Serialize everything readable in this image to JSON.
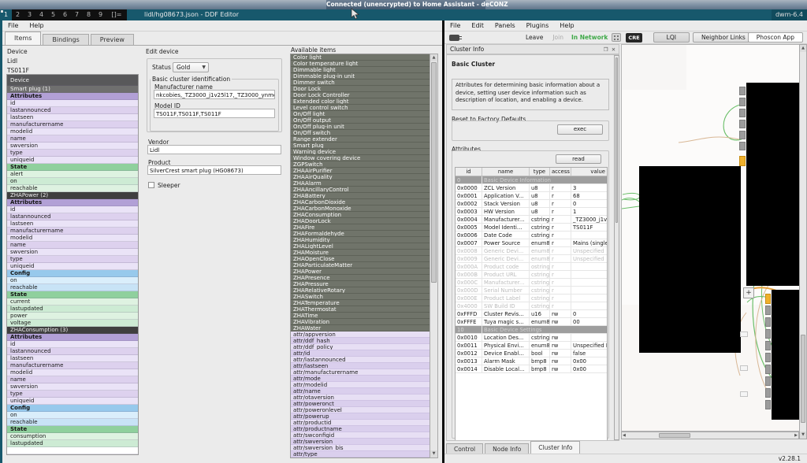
{
  "screen": {
    "top_title": "Connected (unencrypted) to Home Assistant - deCONZ",
    "dwm": {
      "tags": [
        {
          "kind": "tag active",
          "label": "1"
        },
        {
          "kind": "tag",
          "label": "2"
        },
        {
          "kind": "tag",
          "label": "3"
        },
        {
          "kind": "tag",
          "label": "4"
        },
        {
          "kind": "tag",
          "label": "5"
        },
        {
          "kind": "tag",
          "label": "6"
        },
        {
          "kind": "tag",
          "label": "7"
        },
        {
          "kind": "tag",
          "label": "8"
        },
        {
          "kind": "tag",
          "label": "9"
        }
      ],
      "layout": "[]=",
      "window_title": "lidl/hg08673.json - DDF Editor",
      "status": "dwm-6.4"
    },
    "colors": {
      "accent_teal": "#17586c",
      "in_network_green": "#3fa948",
      "marker_orange": "#f0b12c",
      "link_green": "#6abf69",
      "link_tan": "#d9b896"
    }
  },
  "ddf_editor": {
    "menu": [
      {
        "kind": "mi",
        "label": "File"
      },
      {
        "kind": "mi",
        "label": "Help"
      }
    ],
    "tabs": [
      {
        "kind": "tab active",
        "label": "Items"
      },
      {
        "kind": "tab",
        "label": "Bindings"
      },
      {
        "kind": "tab",
        "label": "Preview"
      }
    ],
    "device_label": "Device",
    "device_vendor": "Lidl",
    "device_model": "TS011F",
    "tree": [
      {
        "kind": "k-dev",
        "label": "Device"
      },
      {
        "kind": "k-mid",
        "label": "Smart plug (1)"
      },
      {
        "kind": "k-ph",
        "label": "Attributes"
      },
      {
        "kind": "k-p0",
        "label": "id"
      },
      {
        "kind": "k-p1",
        "label": "lastannounced"
      },
      {
        "kind": "k-p0",
        "label": "lastseen"
      },
      {
        "kind": "k-p1",
        "label": "manufacturername"
      },
      {
        "kind": "k-p0",
        "label": "modelid"
      },
      {
        "kind": "k-p1",
        "label": "name"
      },
      {
        "kind": "k-p0",
        "label": "swversion"
      },
      {
        "kind": "k-p1",
        "label": "type"
      },
      {
        "kind": "k-p0",
        "label": "uniqueid"
      },
      {
        "kind": "k-gh",
        "label": "State"
      },
      {
        "kind": "k-g0",
        "label": "alert"
      },
      {
        "kind": "k-g1",
        "label": "on"
      },
      {
        "kind": "k-g0",
        "label": "reachable"
      },
      {
        "kind": "k-zha",
        "label": "ZHAPower (2)"
      },
      {
        "kind": "k-ph",
        "label": "Attributes"
      },
      {
        "kind": "k-p0",
        "label": "id"
      },
      {
        "kind": "k-p1",
        "label": "lastannounced"
      },
      {
        "kind": "k-p0",
        "label": "lastseen"
      },
      {
        "kind": "k-p1",
        "label": "manufacturername"
      },
      {
        "kind": "k-p0",
        "label": "modelid"
      },
      {
        "kind": "k-p1",
        "label": "name"
      },
      {
        "kind": "k-p0",
        "label": "swversion"
      },
      {
        "kind": "k-p1",
        "label": "type"
      },
      {
        "kind": "k-p0",
        "label": "uniqueid"
      },
      {
        "kind": "k-bh",
        "label": "Config"
      },
      {
        "kind": "k-b0",
        "label": "on"
      },
      {
        "kind": "k-b1",
        "label": "reachable"
      },
      {
        "kind": "k-gh",
        "label": "State"
      },
      {
        "kind": "k-g0",
        "label": "current"
      },
      {
        "kind": "k-g1",
        "label": "lastupdated"
      },
      {
        "kind": "k-g0",
        "label": "power"
      },
      {
        "kind": "k-g1",
        "label": "voltage"
      },
      {
        "kind": "k-zha",
        "label": "ZHAConsumption (3)"
      },
      {
        "kind": "k-ph",
        "label": "Attributes"
      },
      {
        "kind": "k-p0",
        "label": "id"
      },
      {
        "kind": "k-p1",
        "label": "lastannounced"
      },
      {
        "kind": "k-p0",
        "label": "lastseen"
      },
      {
        "kind": "k-p1",
        "label": "manufacturername"
      },
      {
        "kind": "k-p0",
        "label": "modelid"
      },
      {
        "kind": "k-p1",
        "label": "name"
      },
      {
        "kind": "k-p0",
        "label": "swversion"
      },
      {
        "kind": "k-p1",
        "label": "type"
      },
      {
        "kind": "k-p0",
        "label": "uniqueid"
      },
      {
        "kind": "k-bh",
        "label": "Config"
      },
      {
        "kind": "k-b0",
        "label": "on"
      },
      {
        "kind": "k-b1",
        "label": "reachable"
      },
      {
        "kind": "k-gh",
        "label": "State"
      },
      {
        "kind": "k-g0",
        "label": "consumption"
      },
      {
        "kind": "k-g1",
        "label": "lastupdated"
      },
      {
        "kind": "k-empty",
        "label": ""
      }
    ],
    "edit_device": {
      "title": "Edit device",
      "status_label": "Status",
      "status_value": "Gold",
      "basic_group_label": "Basic cluster identification",
      "manufacturer_label": "Manufacturer name",
      "manufacturer_value": "nkcobies,_TZ3000_j1v25l17,_TZ3000_ynmowqk2",
      "model_label": "Model ID",
      "model_value": "TS011F,TS011F,TS011F",
      "vendor_label": "Vendor",
      "vendor_value": "Lidl",
      "product_label": "Product",
      "product_value": "SilverCrest smart plug (HG08673)",
      "sleeper_label": "Sleeper",
      "sleeper_checked": false
    },
    "available_items_label": "Available items",
    "available_items": [
      {
        "kind": "k-d",
        "label": "Color light"
      },
      {
        "kind": "k-d",
        "label": "Color temperature light"
      },
      {
        "kind": "k-d",
        "label": "Dimmable light"
      },
      {
        "kind": "k-d",
        "label": "Dimmable plug-in unit"
      },
      {
        "kind": "k-d",
        "label": "Dimmer switch"
      },
      {
        "kind": "k-d",
        "label": "Door Lock"
      },
      {
        "kind": "k-d",
        "label": "Door Lock Controller"
      },
      {
        "kind": "k-d",
        "label": "Extended color light"
      },
      {
        "kind": "k-d",
        "label": "Level control switch"
      },
      {
        "kind": "k-d",
        "label": "On/Off light"
      },
      {
        "kind": "k-d",
        "label": "On/Off output"
      },
      {
        "kind": "k-d",
        "label": "On/Off plug-in unit"
      },
      {
        "kind": "k-d",
        "label": "On/Off switch"
      },
      {
        "kind": "k-d",
        "label": "Range extender"
      },
      {
        "kind": "k-d",
        "label": "Smart plug"
      },
      {
        "kind": "k-d",
        "label": "Warning device"
      },
      {
        "kind": "k-d",
        "label": "Window covering device"
      },
      {
        "kind": "k-d",
        "label": "ZGPSwitch"
      },
      {
        "kind": "k-d",
        "label": "ZHAAirPurifier"
      },
      {
        "kind": "k-d",
        "label": "ZHAAirQuality"
      },
      {
        "kind": "k-d",
        "label": "ZHAAlarm"
      },
      {
        "kind": "k-d",
        "label": "ZHAAncillaryControl"
      },
      {
        "kind": "k-d",
        "label": "ZHABattery"
      },
      {
        "kind": "k-d",
        "label": "ZHACarbonDioxide"
      },
      {
        "kind": "k-d",
        "label": "ZHACarbonMonoxide"
      },
      {
        "kind": "k-d",
        "label": "ZHAConsumption"
      },
      {
        "kind": "k-d",
        "label": "ZHADoorLock"
      },
      {
        "kind": "k-d",
        "label": "ZHAFire"
      },
      {
        "kind": "k-d",
        "label": "ZHAFormaldehyde"
      },
      {
        "kind": "k-d",
        "label": "ZHAHumidity"
      },
      {
        "kind": "k-d",
        "label": "ZHALightLevel"
      },
      {
        "kind": "k-d",
        "label": "ZHAMoisture"
      },
      {
        "kind": "k-d",
        "label": "ZHAOpenClose"
      },
      {
        "kind": "k-d",
        "label": "ZHAParticulateMatter"
      },
      {
        "kind": "k-d",
        "label": "ZHAPower"
      },
      {
        "kind": "k-d",
        "label": "ZHAPresence"
      },
      {
        "kind": "k-d",
        "label": "ZHAPressure"
      },
      {
        "kind": "k-d",
        "label": "ZHARelativeRotary"
      },
      {
        "kind": "k-d",
        "label": "ZHASwitch"
      },
      {
        "kind": "k-d",
        "label": "ZHATemperature"
      },
      {
        "kind": "k-d",
        "label": "ZHAThermostat"
      },
      {
        "kind": "k-d",
        "label": "ZHATime"
      },
      {
        "kind": "k-d",
        "label": "ZHAVibration"
      },
      {
        "kind": "k-d",
        "label": "ZHAWater"
      },
      {
        "kind": "k-a0",
        "label": "attr/appversion"
      },
      {
        "kind": "k-a1",
        "label": "attr/ddf_hash"
      },
      {
        "kind": "k-a0",
        "label": "attr/ddf_policy"
      },
      {
        "kind": "k-a1",
        "label": "attr/id"
      },
      {
        "kind": "k-a0",
        "label": "attr/lastannounced"
      },
      {
        "kind": "k-a1",
        "label": "attr/lastseen"
      },
      {
        "kind": "k-a0",
        "label": "attr/manufacturername"
      },
      {
        "kind": "k-a1",
        "label": "attr/mode"
      },
      {
        "kind": "k-a0",
        "label": "attr/modelid"
      },
      {
        "kind": "k-a1",
        "label": "attr/name"
      },
      {
        "kind": "k-a0",
        "label": "attr/otaversion"
      },
      {
        "kind": "k-a1",
        "label": "attr/poweronct"
      },
      {
        "kind": "k-a0",
        "label": "attr/poweronlevel"
      },
      {
        "kind": "k-a1",
        "label": "attr/powerup"
      },
      {
        "kind": "k-a0",
        "label": "attr/productid"
      },
      {
        "kind": "k-a1",
        "label": "attr/productname"
      },
      {
        "kind": "k-a0",
        "label": "attr/swconfigid"
      },
      {
        "kind": "k-a1",
        "label": "attr/swversion"
      },
      {
        "kind": "k-a0",
        "label": "attr/swversion_bis"
      },
      {
        "kind": "k-a1",
        "label": "attr/type"
      }
    ]
  },
  "deconz": {
    "menu": [
      {
        "kind": "mi",
        "label": "File"
      },
      {
        "kind": "mi",
        "label": "Edit"
      },
      {
        "kind": "mi",
        "label": "Panels"
      },
      {
        "kind": "mi",
        "label": "Plugins"
      },
      {
        "kind": "mi",
        "label": "Help"
      }
    ],
    "toolbar": {
      "leave": "Leave",
      "join": "Join",
      "in_network": "In Network",
      "cre_badge": "CRE",
      "lqi": "LQI",
      "neighbor_links": "Neighbor Links",
      "phoscon": "Phoscon App"
    },
    "cluster_info": {
      "panel_title": "Cluster Info",
      "float_icon": "❐",
      "close_icon": "✕",
      "cluster_name": "Basic Cluster",
      "description": "Attributes for determining basic information about a device, setting user device information such as description of location, and enabling a device.",
      "reset_group_label": "Reset to Factory Defaults",
      "exec_button": "exec",
      "attributes_label": "Attributes",
      "read_button": "read",
      "table_rows": [
        {
          "kind": "thead",
          "cells": [
            "id",
            "name",
            "type",
            "access",
            "value"
          ]
        },
        {
          "kind": "sect",
          "cells": [
            "0",
            "Basic Device Information"
          ]
        },
        {
          "kind": "",
          "cells": [
            "0x0000",
            "ZCL Version",
            "u8",
            "r",
            "3"
          ]
        },
        {
          "kind": "",
          "cells": [
            "0x0001",
            "Application V...",
            "u8",
            "r",
            "68"
          ]
        },
        {
          "kind": "",
          "cells": [
            "0x0002",
            "Stack Version",
            "u8",
            "r",
            "0"
          ]
        },
        {
          "kind": "",
          "cells": [
            "0x0003",
            "HW Version",
            "u8",
            "r",
            "1"
          ]
        },
        {
          "kind": "",
          "cells": [
            "0x0004",
            "Manufacturer...",
            "cstring",
            "r",
            "_TZ3000_j1v25l1"
          ]
        },
        {
          "kind": "",
          "cells": [
            "0x0005",
            "Model Identi...",
            "cstring",
            "r",
            "TS011F"
          ]
        },
        {
          "kind": "",
          "cells": [
            "0x0006",
            "Date Code",
            "cstring",
            "r",
            ""
          ]
        },
        {
          "kind": "",
          "cells": [
            "0x0007",
            "Power Source",
            "enum8",
            "r",
            "Mains (single ph"
          ]
        },
        {
          "kind": "dis",
          "cells": [
            "0x0008",
            "Generic Devi...",
            "enum8",
            "r",
            "Unspecified"
          ]
        },
        {
          "kind": "dis",
          "cells": [
            "0x0009",
            "Generic Devi...",
            "enum8",
            "r",
            "Unspecified"
          ]
        },
        {
          "kind": "dis",
          "cells": [
            "0x000A",
            "Product code",
            "ostring",
            "r",
            ""
          ]
        },
        {
          "kind": "dis",
          "cells": [
            "0x000B",
            "Product URL",
            "cstring",
            "r",
            ""
          ]
        },
        {
          "kind": "dis",
          "cells": [
            "0x000C",
            "Manufacturer...",
            "cstring",
            "r",
            ""
          ]
        },
        {
          "kind": "dis",
          "cells": [
            "0x000D",
            "Serial Number",
            "cstring",
            "r",
            ""
          ]
        },
        {
          "kind": "dis",
          "cells": [
            "0x000E",
            "Product Label",
            "cstring",
            "r",
            ""
          ]
        },
        {
          "kind": "dis",
          "cells": [
            "0x4000",
            "SW Build ID",
            "cstring",
            "r",
            ""
          ]
        },
        {
          "kind": "",
          "cells": [
            "0xFFFD",
            "Cluster Revis...",
            "u16",
            "rw",
            "0"
          ]
        },
        {
          "kind": "",
          "cells": [
            "0xFFFE",
            "Tuya magic s...",
            "enum8",
            "rw",
            "00"
          ]
        },
        {
          "kind": "sect",
          "cells": [
            "10",
            "Basic Device Settings"
          ]
        },
        {
          "kind": "",
          "cells": [
            "0x0010",
            "Location Des...",
            "cstring",
            "rw",
            ""
          ]
        },
        {
          "kind": "",
          "cells": [
            "0x0011",
            "Physical Envi...",
            "enum8",
            "rw",
            "Unspecified Envi"
          ]
        },
        {
          "kind": "",
          "cells": [
            "0x0012",
            "Device Enabl...",
            "bool",
            "rw",
            "false"
          ]
        },
        {
          "kind": "",
          "cells": [
            "0x0013",
            "Alarm Mask",
            "bmp8",
            "rw",
            "0x00"
          ]
        },
        {
          "kind": "",
          "cells": [
            "0x0014",
            "Disable Local...",
            "bmp8",
            "rw",
            "0x00"
          ]
        }
      ]
    },
    "bottom_tabs": [
      {
        "kind": "tab",
        "label": "Control"
      },
      {
        "kind": "tab",
        "label": "Node Info"
      },
      {
        "kind": "tab active",
        "label": "Cluster Info"
      }
    ],
    "version": "v2.28.1",
    "graph": {
      "plus_button": "+"
    }
  }
}
